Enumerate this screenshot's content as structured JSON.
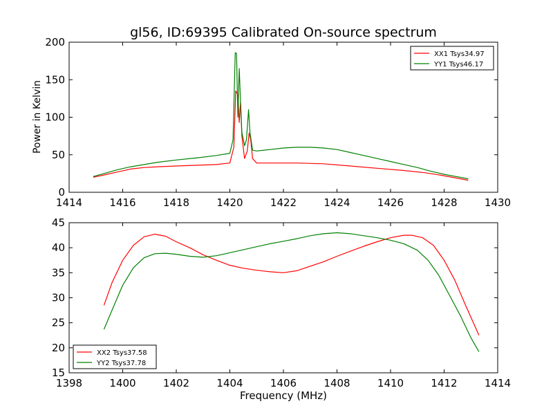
{
  "chart_data": [
    {
      "type": "line",
      "title": "gl56, ID:69395 Calibrated On-source spectrum",
      "xlabel": "",
      "ylabel": "Power in Kelvin",
      "xlim": [
        1414,
        1430
      ],
      "ylim": [
        0,
        200
      ],
      "xticks": [
        "1414",
        "1416",
        "1418",
        "1420",
        "1422",
        "1424",
        "1426",
        "1428",
        "1430"
      ],
      "yticks": [
        "0",
        "50",
        "100",
        "150",
        "200"
      ],
      "legend_position": "top-right",
      "series": [
        {
          "name": "XX1 Tsys34.97",
          "color": "#ff0000",
          "x": [
            1414.9,
            1415.3,
            1415.8,
            1416.3,
            1416.8,
            1417.3,
            1418,
            1418.8,
            1419.5,
            1420.0,
            1420.15,
            1420.22,
            1420.3,
            1420.35,
            1420.4,
            1420.45,
            1420.55,
            1420.65,
            1420.72,
            1420.78,
            1420.85,
            1421.0,
            1421.5,
            1422.5,
            1423.5,
            1424.5,
            1425.5,
            1426.5,
            1427.3,
            1428.0,
            1428.9
          ],
          "values": [
            20,
            23,
            27,
            31,
            33,
            34,
            35,
            36,
            37,
            39,
            60,
            135,
            130,
            93,
            120,
            75,
            45,
            55,
            79,
            70,
            45,
            39,
            39,
            39,
            38,
            35,
            32,
            29,
            26,
            22,
            16
          ]
        },
        {
          "name": "YY1 Tsys46.17",
          "color": "#008000",
          "x": [
            1414.9,
            1415.3,
            1415.8,
            1416.3,
            1416.8,
            1417.3,
            1418,
            1418.8,
            1419.5,
            1420.0,
            1420.12,
            1420.2,
            1420.25,
            1420.3,
            1420.35,
            1420.4,
            1420.45,
            1420.55,
            1420.62,
            1420.7,
            1420.75,
            1420.85,
            1421.0,
            1421.5,
            1422.0,
            1422.5,
            1423.0,
            1423.5,
            1424.0,
            1424.5,
            1425.0,
            1425.5,
            1426.0,
            1426.5,
            1427.0,
            1427.5,
            1428.0,
            1428.9
          ],
          "values": [
            21,
            25,
            30,
            34,
            37,
            40,
            43,
            46,
            49,
            52,
            70,
            186,
            185,
            100,
            165,
            120,
            80,
            62,
            70,
            110,
            80,
            56,
            55,
            57,
            59,
            60,
            60,
            59,
            57,
            53,
            49,
            45,
            41,
            37,
            33,
            28,
            24,
            18
          ]
        }
      ]
    },
    {
      "type": "line",
      "title": "",
      "xlabel": "Frequency (MHz)",
      "ylabel": "",
      "xlim": [
        1398,
        1414
      ],
      "ylim": [
        15,
        45
      ],
      "xticks": [
        "1398",
        "1400",
        "1402",
        "1404",
        "1406",
        "1408",
        "1410",
        "1412",
        "1414"
      ],
      "yticks": [
        "15",
        "20",
        "25",
        "30",
        "35",
        "40",
        "45"
      ],
      "legend_position": "bottom-left",
      "series": [
        {
          "name": "XX2 Tsys37.58",
          "color": "#ff0000",
          "x": [
            1399.3,
            1399.6,
            1400.0,
            1400.4,
            1400.8,
            1401.2,
            1401.6,
            1402.0,
            1402.5,
            1403.0,
            1403.5,
            1404.0,
            1404.5,
            1405.0,
            1405.5,
            1406.0,
            1406.5,
            1407.0,
            1407.5,
            1408.0,
            1408.5,
            1409.0,
            1409.5,
            1410.0,
            1410.5,
            1410.8,
            1411.2,
            1411.6,
            1412.0,
            1412.4,
            1412.8,
            1413.3
          ],
          "values": [
            28.5,
            33,
            37.5,
            40.5,
            42.2,
            42.7,
            42.3,
            41.2,
            40,
            38.6,
            37.5,
            36.5,
            35.9,
            35.5,
            35.2,
            35,
            35.4,
            36.3,
            37.2,
            38.3,
            39.3,
            40.3,
            41.2,
            42,
            42.5,
            42.5,
            42,
            40.5,
            37.5,
            33.5,
            28.5,
            22.5
          ]
        },
        {
          "name": "YY2 Tsys37.78",
          "color": "#008000",
          "x": [
            1399.3,
            1399.6,
            1400.0,
            1400.4,
            1400.8,
            1401.2,
            1401.6,
            1402.0,
            1402.5,
            1403.0,
            1403.5,
            1404.0,
            1404.5,
            1405.0,
            1405.5,
            1406.0,
            1406.5,
            1407.0,
            1407.5,
            1408.0,
            1408.5,
            1409.0,
            1409.5,
            1410.0,
            1410.5,
            1411.0,
            1411.4,
            1411.8,
            1412.2,
            1412.6,
            1413.0,
            1413.3
          ],
          "values": [
            23.7,
            27.5,
            32.5,
            36,
            38,
            38.8,
            38.9,
            38.7,
            38.3,
            38.1,
            38.4,
            39,
            39.6,
            40.2,
            40.8,
            41.3,
            41.8,
            42.4,
            42.8,
            43,
            42.8,
            42.4,
            42,
            41.5,
            40.8,
            39.5,
            37.5,
            34.5,
            30.5,
            26.5,
            22,
            19.2
          ]
        }
      ]
    }
  ]
}
